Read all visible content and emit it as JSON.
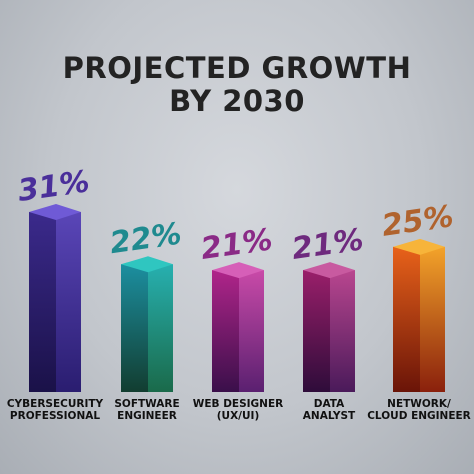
{
  "title_line1": "PROJECTED GROWTH",
  "title_line2": "BY 2030",
  "chart_data": {
    "type": "bar",
    "title": "PROJECTED GROWTH BY 2030",
    "categories": [
      [
        "CYBERSECURITY",
        "PROFESSIONAL"
      ],
      [
        "SOFTWARE",
        "ENGINEER"
      ],
      [
        "WEB DESIGNER",
        "(UX/UI)"
      ],
      [
        "DATA",
        "ANALYST"
      ],
      [
        "NETWORK/",
        "CLOUD ENGINEER"
      ]
    ],
    "values": [
      31,
      22,
      21,
      21,
      25
    ],
    "value_labels": [
      "31%",
      "22%",
      "21%",
      "21%",
      "25%"
    ],
    "unit": "%",
    "ylim": [
      0,
      31
    ],
    "colors": [
      {
        "front_top": "#3b2a8c",
        "front_bottom": "#1a1148",
        "side_top": "#5a46b8",
        "side_bottom": "#2a1d70",
        "top": "#6f5ad6",
        "label": "#4a2f9a"
      },
      {
        "front_top": "#1c8fa0",
        "front_bottom": "#123d30",
        "side_top": "#27b0b0",
        "side_bottom": "#1a6a4a",
        "top": "#2fc6c0",
        "label": "#1f8a8f"
      },
      {
        "front_top": "#b0258a",
        "front_bottom": "#3a0f4a",
        "side_top": "#c94aa8",
        "side_bottom": "#5a2070",
        "top": "#d65fb8",
        "label": "#8a2a86"
      },
      {
        "front_top": "#9a1f6a",
        "front_bottom": "#2e0c3a",
        "side_top": "#b9468f",
        "side_bottom": "#4a1a5a",
        "top": "#c85aa0",
        "label": "#6e2a7e"
      },
      {
        "front_top": "#e8621a",
        "front_bottom": "#6a1408",
        "side_top": "#f3a32a",
        "side_bottom": "#8a200c",
        "top": "#f7b43a",
        "label": "#b0632e"
      }
    ],
    "grid": false,
    "legend": "none"
  }
}
